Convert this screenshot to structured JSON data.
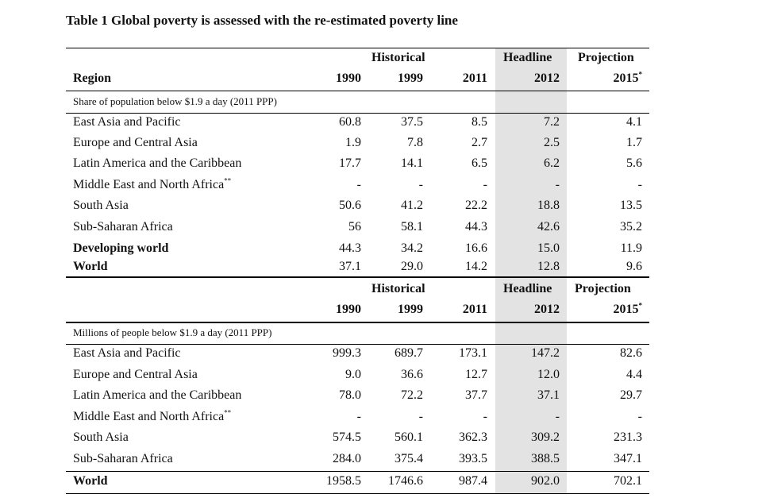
{
  "title": "Table 1 Global poverty is assessed with the re-estimated poverty line",
  "header": {
    "region_label": "Region",
    "group_historical": "Historical",
    "group_headline": "Headline",
    "group_projection": "Projection",
    "years": [
      "1990",
      "1999",
      "2011",
      "2012",
      "2015"
    ],
    "projection_footnote_mark": "*"
  },
  "sections": [
    {
      "subtitle": "Share of population below $1.9 a day (2011 PPP)",
      "rows": [
        {
          "region": "East Asia and Pacific",
          "note": "",
          "bold": false,
          "values": [
            "60.8",
            "37.5",
            "8.5",
            "7.2",
            "4.1"
          ]
        },
        {
          "region": "Europe and Central Asia",
          "note": "",
          "bold": false,
          "values": [
            "1.9",
            "7.8",
            "2.7",
            "2.5",
            "1.7"
          ]
        },
        {
          "region": "Latin America and the Caribbean",
          "note": "",
          "bold": false,
          "values": [
            "17.7",
            "14.1",
            "6.5",
            "6.2",
            "5.6"
          ]
        },
        {
          "region": "Middle East and North Africa",
          "note": "**",
          "bold": false,
          "values": [
            "-",
            "-",
            "-",
            "-",
            "-"
          ]
        },
        {
          "region": "South Asia",
          "note": "",
          "bold": false,
          "values": [
            "50.6",
            "41.2",
            "22.2",
            "18.8",
            "13.5"
          ]
        },
        {
          "region": "Sub-Saharan Africa",
          "note": "",
          "bold": false,
          "values": [
            "56",
            "58.1",
            "44.3",
            "42.6",
            "35.2"
          ]
        },
        {
          "region": "Developing world",
          "note": "",
          "bold": true,
          "values": [
            "44.3",
            "34.2",
            "16.6",
            "15.0",
            "11.9"
          ]
        },
        {
          "region": "World",
          "note": "",
          "bold": true,
          "values": [
            "37.1",
            "29.0",
            "14.2",
            "12.8",
            "9.6"
          ]
        }
      ]
    },
    {
      "subtitle": "Millions of people below $1.9 a day (2011 PPP)",
      "rows": [
        {
          "region": "East Asia and Pacific",
          "note": "",
          "bold": false,
          "values": [
            "999.3",
            "689.7",
            "173.1",
            "147.2",
            "82.6"
          ]
        },
        {
          "region": "Europe and Central Asia",
          "note": "",
          "bold": false,
          "values": [
            "9.0",
            "36.6",
            "12.7",
            "12.0",
            "4.4"
          ]
        },
        {
          "region": "Latin America and the Caribbean",
          "note": "",
          "bold": false,
          "values": [
            "78.0",
            "72.2",
            "37.7",
            "37.1",
            "29.7"
          ]
        },
        {
          "region": "Middle East and North Africa",
          "note": "**",
          "bold": false,
          "values": [
            "-",
            "-",
            "-",
            "-",
            "-"
          ]
        },
        {
          "region": "South Asia",
          "note": "",
          "bold": false,
          "values": [
            "574.5",
            "560.1",
            "362.3",
            "309.2",
            "231.3"
          ]
        },
        {
          "region": "Sub-Saharan Africa",
          "note": "",
          "bold": false,
          "values": [
            "284.0",
            "375.4",
            "393.5",
            "388.5",
            "347.1"
          ]
        },
        {
          "region": "World",
          "note": "",
          "bold": true,
          "values": [
            "1958.5",
            "1746.6",
            "987.4",
            "902.0",
            "702.1"
          ]
        }
      ]
    }
  ]
}
